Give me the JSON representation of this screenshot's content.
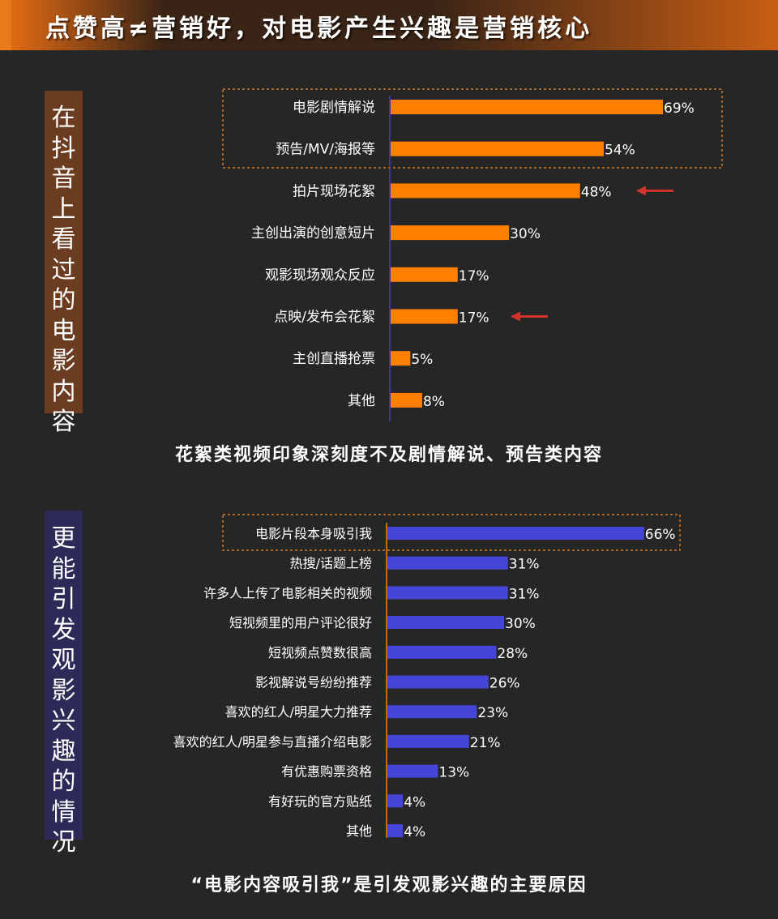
{
  "header": {
    "title": "点赞高≠营销好，对电影产生兴趣是营销核心"
  },
  "colors": {
    "orange": "#ff8000",
    "blue": "#4545d8",
    "arrow": "#d0342c",
    "dash": "#d57a2a"
  },
  "sections": [
    {
      "side_label": "在抖音上看过的电影内容",
      "caption": "花絮类视频印象深刻度不及剧情解说、预告类内容"
    },
    {
      "side_label": "更能引发观影兴趣的情况",
      "caption": "“电影内容吸引我”是引发观影兴趣的主要原因"
    }
  ],
  "chart_data": [
    {
      "type": "bar",
      "orientation": "horizontal",
      "categories": [
        "电影剧情解说",
        "预告/MV/海报等",
        "拍片现场花絮",
        "主创出演的创意短片",
        "观影现场观众反应",
        "点映/发布会花絮",
        "主创直播抢票",
        "其他"
      ],
      "values": [
        69,
        54,
        48,
        30,
        17,
        17,
        5,
        8
      ],
      "labels": [
        "69%",
        "54%",
        "48%",
        "30%",
        "17%",
        "17%",
        "5%",
        "8%"
      ],
      "xlim": [
        0,
        100
      ],
      "highlighted": [
        "电影剧情解说",
        "预告/MV/海报等"
      ],
      "arrows": [
        "拍片现场花絮",
        "点映/发布会花絮"
      ],
      "color": "#ff8000"
    },
    {
      "type": "bar",
      "orientation": "horizontal",
      "categories": [
        "电影片段本身吸引我",
        "热搜/话题上榜",
        "许多人上传了电影相关的视频",
        "短视频里的用户评论很好",
        "短视频点赞数很高",
        "影视解说号纷纷推荐",
        "喜欢的红人/明星大力推荐",
        "喜欢的红人/明星参与直播介绍电影",
        "有优惠购票资格",
        "有好玩的官方贴纸",
        "其他"
      ],
      "values": [
        66,
        31,
        31,
        30,
        28,
        26,
        23,
        21,
        13,
        4,
        4
      ],
      "labels": [
        "66%",
        "31%",
        "31%",
        "30%",
        "28%",
        "26%",
        "23%",
        "21%",
        "13%",
        "4%",
        "4%"
      ],
      "xlim": [
        0,
        100
      ],
      "highlighted": [
        "电影片段本身吸引我"
      ],
      "arrows": [],
      "color": "#4545d8"
    }
  ]
}
